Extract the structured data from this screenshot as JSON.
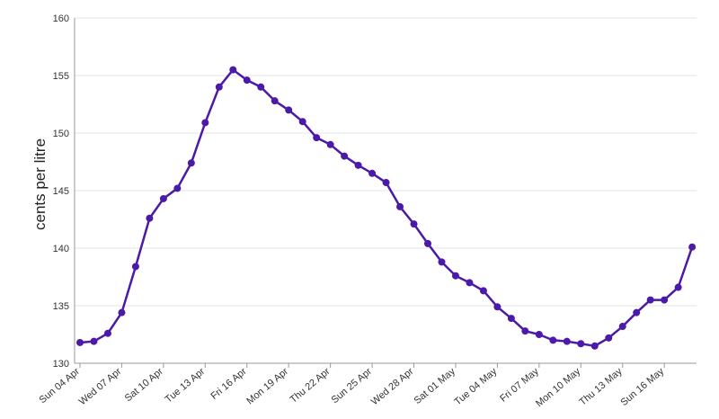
{
  "chart_data": {
    "type": "line",
    "title": "",
    "xlabel": "",
    "ylabel": "cents per litre",
    "ylim": [
      130,
      160
    ],
    "yticks": [
      130,
      135,
      140,
      145,
      150,
      155,
      160
    ],
    "grid": "horizontal",
    "line_color": "#4b1aa8",
    "x_tick_labels": [
      "Sun 04 Apr",
      "Wed 07 Apr",
      "Sat 10 Apr",
      "Tue 13 Apr",
      "Fri 16 Apr",
      "Mon 19 Apr",
      "Thu 22 Apr",
      "Sun 25 Apr",
      "Wed 28 Apr",
      "Sat 01 May",
      "Tue 04 May",
      "Fri 07 May",
      "Mon 10 May",
      "Thu 13 May",
      "Sun 16 May"
    ],
    "series": [
      {
        "values": [
          131.8,
          131.9,
          132.6,
          134.4,
          138.4,
          142.6,
          144.3,
          145.2,
          147.4,
          150.9,
          154.0,
          155.5,
          154.6,
          154.0,
          152.8,
          152.0,
          151.0,
          149.6,
          149.0,
          148.0,
          147.2,
          146.5,
          145.7,
          143.6,
          142.1,
          140.4,
          138.8,
          137.6,
          137.0,
          136.3,
          134.9,
          133.9,
          132.8,
          132.5,
          132.0,
          131.9,
          131.7,
          131.5,
          132.2,
          133.2,
          134.4,
          135.5,
          135.5,
          136.6,
          140.1
        ]
      }
    ]
  }
}
